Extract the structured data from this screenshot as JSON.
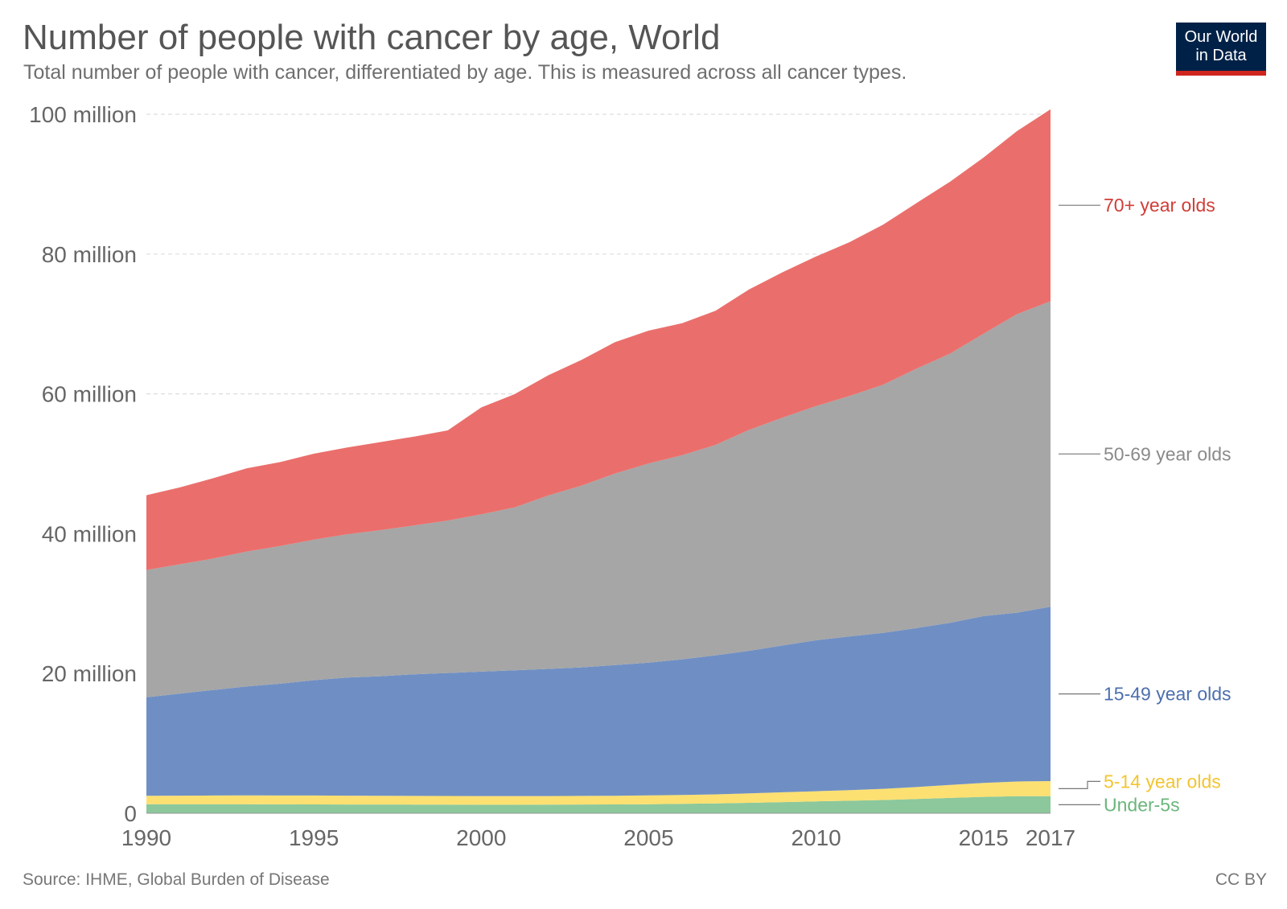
{
  "header": {
    "title": "Number of people with cancer by age, World",
    "subtitle": "Total number of people with cancer, differentiated by age. This is measured across all cancer types."
  },
  "logo": {
    "line1": "Our World",
    "line2": "in Data"
  },
  "footer": {
    "source": "Source: IHME, Global Burden of Disease",
    "license": "CC BY"
  },
  "chart_data": {
    "type": "area",
    "stacked": true,
    "title": "Number of people with cancer by age, World",
    "xlabel": "",
    "ylabel": "",
    "x": [
      1990,
      1991,
      1992,
      1993,
      1994,
      1995,
      1996,
      1997,
      1998,
      1999,
      2000,
      2001,
      2002,
      2003,
      2004,
      2005,
      2006,
      2007,
      2008,
      2009,
      2010,
      2011,
      2012,
      2013,
      2014,
      2015,
      2016,
      2017
    ],
    "xlim": [
      1990,
      2017
    ],
    "ylim": [
      0,
      100000000
    ],
    "x_ticks": [
      1990,
      1995,
      2000,
      2005,
      2010,
      2015,
      2017
    ],
    "y_ticks": [
      {
        "value": 0,
        "label": "0"
      },
      {
        "value": 20000000,
        "label": "20 million"
      },
      {
        "value": 40000000,
        "label": "40 million"
      },
      {
        "value": 60000000,
        "label": "60 million"
      },
      {
        "value": 80000000,
        "label": "80 million"
      },
      {
        "value": 100000000,
        "label": "100 million"
      }
    ],
    "grid": "horizontal dashed",
    "legend_placement": "right, inline labels",
    "series": [
      {
        "name": "Under-5s",
        "color": "#8cc89b",
        "label_color": "#6bb67c",
        "values": [
          1300000,
          1300000,
          1300000,
          1300000,
          1280000,
          1270000,
          1260000,
          1250000,
          1240000,
          1230000,
          1220000,
          1220000,
          1230000,
          1250000,
          1270000,
          1300000,
          1350000,
          1400000,
          1500000,
          1600000,
          1700000,
          1800000,
          1900000,
          2050000,
          2200000,
          2350000,
          2450000,
          2450000
        ]
      },
      {
        "name": "5-14 year olds",
        "color": "#fde072",
        "label_color": "#f2c530",
        "values": [
          1200000,
          1220000,
          1240000,
          1250000,
          1260000,
          1270000,
          1260000,
          1260000,
          1250000,
          1240000,
          1240000,
          1240000,
          1230000,
          1230000,
          1240000,
          1250000,
          1270000,
          1300000,
          1350000,
          1400000,
          1450000,
          1500000,
          1600000,
          1700000,
          1850000,
          2000000,
          2100000,
          2150000
        ]
      },
      {
        "name": "15-49 year olds",
        "color": "#6f8fc4",
        "label_color": "#4d6fae",
        "values": [
          14100000,
          14600000,
          15100000,
          15600000,
          16000000,
          16500000,
          16900000,
          17100000,
          17400000,
          17600000,
          17800000,
          18000000,
          18200000,
          18400000,
          18700000,
          19000000,
          19400000,
          19900000,
          20400000,
          21000000,
          21600000,
          22000000,
          22300000,
          22750000,
          23200000,
          23850000,
          24150000,
          24950000
        ]
      },
      {
        "name": "50-69 year olds",
        "color": "#a6a6a6",
        "label_color": "#8a8a8a",
        "values": [
          18200000,
          18500000,
          18800000,
          19300000,
          19700000,
          20100000,
          20500000,
          20900000,
          21300000,
          21800000,
          22500000,
          23300000,
          24800000,
          26000000,
          27400000,
          28500000,
          29200000,
          30100000,
          31600000,
          32600000,
          33500000,
          34400000,
          35500000,
          37100000,
          38500000,
          40400000,
          42700000,
          43700000
        ]
      },
      {
        "name": "70+ year olds",
        "color": "#ea6f6c",
        "label_color": "#d13d37",
        "values": [
          10700000,
          11000000,
          11500000,
          11900000,
          12000000,
          12300000,
          12400000,
          12600000,
          12700000,
          12900000,
          15300000,
          16200000,
          17200000,
          18000000,
          18800000,
          19000000,
          18900000,
          19200000,
          20100000,
          20800000,
          21400000,
          22000000,
          22900000,
          23700000,
          24600000,
          25200000,
          26200000,
          27450000
        ]
      }
    ]
  }
}
